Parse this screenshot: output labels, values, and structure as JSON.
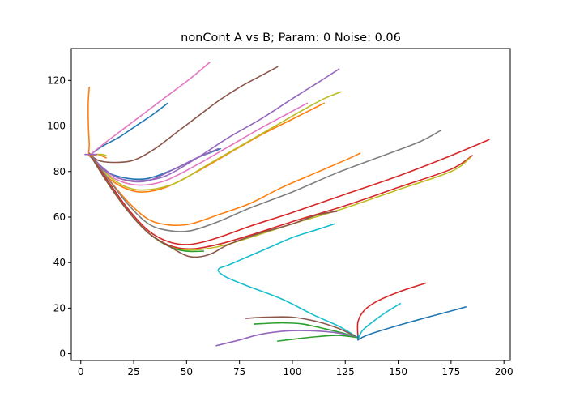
{
  "chart_data": {
    "type": "line",
    "title": "nonCont A vs B; Param: 0 Noise: 0.06",
    "xlabel": "",
    "ylabel": "",
    "xlim": [
      -4.5,
      203
    ],
    "ylim": [
      -3,
      134
    ],
    "xticks": [
      0,
      25,
      50,
      75,
      100,
      125,
      150,
      175,
      200
    ],
    "yticks": [
      0,
      20,
      40,
      60,
      80,
      100,
      120
    ],
    "grid": false,
    "legend": "none",
    "series": [
      {
        "color": "#1f77b4",
        "points": [
          [
            4,
            87
          ],
          [
            10,
            91
          ],
          [
            18,
            95
          ],
          [
            26,
            100
          ],
          [
            34,
            105
          ],
          [
            41,
            110
          ]
        ]
      },
      {
        "color": "#e377c2",
        "points": [
          [
            4,
            87
          ],
          [
            12,
            93
          ],
          [
            22,
            100
          ],
          [
            32,
            107
          ],
          [
            42,
            114
          ],
          [
            52,
            121
          ],
          [
            61,
            128
          ]
        ]
      },
      {
        "color": "#8c564b",
        "points": [
          [
            4,
            88
          ],
          [
            8,
            85
          ],
          [
            15,
            84
          ],
          [
            25,
            85
          ],
          [
            35,
            90
          ],
          [
            45,
            97
          ],
          [
            55,
            104
          ],
          [
            65,
            111
          ],
          [
            75,
            117
          ],
          [
            85,
            122
          ],
          [
            93,
            126
          ]
        ]
      },
      {
        "color": "#9467bd",
        "points": [
          [
            4,
            88
          ],
          [
            10,
            82
          ],
          [
            18,
            77
          ],
          [
            28,
            76
          ],
          [
            40,
            78
          ],
          [
            55,
            86
          ],
          [
            70,
            95
          ],
          [
            85,
            103
          ],
          [
            100,
            112
          ],
          [
            112,
            119
          ],
          [
            122,
            125
          ]
        ]
      },
      {
        "color": "#e377c2",
        "points": [
          [
            4,
            88
          ],
          [
            10,
            81
          ],
          [
            18,
            76
          ],
          [
            28,
            74
          ],
          [
            40,
            76
          ],
          [
            55,
            83
          ],
          [
            70,
            91
          ],
          [
            85,
            99
          ],
          [
            97,
            105
          ],
          [
            107,
            110
          ]
        ]
      },
      {
        "color": "#ff7f0e",
        "points": [
          [
            4,
            88
          ],
          [
            10,
            80
          ],
          [
            18,
            74
          ],
          [
            28,
            71
          ],
          [
            40,
            73
          ],
          [
            55,
            80
          ],
          [
            70,
            88
          ],
          [
            85,
            96
          ],
          [
            100,
            103
          ],
          [
            115,
            110
          ]
        ]
      },
      {
        "color": "#bcbd22",
        "points": [
          [
            4,
            88
          ],
          [
            12,
            79
          ],
          [
            22,
            73
          ],
          [
            32,
            72
          ],
          [
            45,
            75
          ],
          [
            60,
            83
          ],
          [
            75,
            91
          ],
          [
            90,
            99
          ],
          [
            105,
            107
          ],
          [
            115,
            112
          ],
          [
            123,
            115
          ]
        ]
      },
      {
        "color": "#1f77b4",
        "points": [
          [
            4,
            87
          ],
          [
            12,
            80
          ],
          [
            22,
            77
          ],
          [
            32,
            77
          ],
          [
            44,
            81
          ],
          [
            55,
            86
          ],
          [
            66,
            90
          ]
        ]
      },
      {
        "color": "#9467bd",
        "points": [
          [
            4,
            87
          ],
          [
            12,
            80
          ],
          [
            22,
            76
          ],
          [
            32,
            76
          ],
          [
            44,
            81
          ],
          [
            55,
            86
          ],
          [
            65,
            90
          ]
        ]
      },
      {
        "color": "#ff7f0e",
        "points": [
          [
            4,
            88
          ],
          [
            12,
            78
          ],
          [
            22,
            67
          ],
          [
            32,
            59
          ],
          [
            42,
            56.5
          ],
          [
            52,
            57
          ],
          [
            65,
            61
          ],
          [
            80,
            66
          ],
          [
            95,
            73
          ],
          [
            110,
            79
          ],
          [
            125,
            85
          ],
          [
            132,
            88
          ]
        ]
      },
      {
        "color": "#7f7f7f",
        "points": [
          [
            4,
            88
          ],
          [
            12,
            78
          ],
          [
            22,
            66
          ],
          [
            32,
            57
          ],
          [
            42,
            54
          ],
          [
            52,
            54
          ],
          [
            65,
            58
          ],
          [
            80,
            64
          ],
          [
            100,
            71
          ],
          [
            120,
            79
          ],
          [
            140,
            86
          ],
          [
            160,
            93
          ],
          [
            170,
            98
          ]
        ]
      },
      {
        "color": "#d62728",
        "points": [
          [
            4,
            88
          ],
          [
            12,
            77
          ],
          [
            22,
            64
          ],
          [
            32,
            54
          ],
          [
            42,
            49
          ],
          [
            52,
            48
          ],
          [
            65,
            51
          ],
          [
            80,
            56
          ],
          [
            100,
            62
          ],
          [
            125,
            70
          ],
          [
            150,
            78
          ],
          [
            175,
            87
          ],
          [
            193,
            94
          ]
        ]
      },
      {
        "color": "#d62728",
        "points": [
          [
            4,
            88
          ],
          [
            12,
            76
          ],
          [
            22,
            63
          ],
          [
            32,
            53
          ],
          [
            42,
            47.5
          ],
          [
            52,
            46
          ],
          [
            65,
            48
          ],
          [
            80,
            52
          ],
          [
            100,
            58
          ],
          [
            125,
            65
          ],
          [
            150,
            73
          ],
          [
            175,
            81
          ],
          [
            185,
            87
          ]
        ]
      },
      {
        "color": "#bcbd22",
        "points": [
          [
            4,
            88
          ],
          [
            12,
            76
          ],
          [
            22,
            63
          ],
          [
            32,
            53
          ],
          [
            42,
            47
          ],
          [
            52,
            45.5
          ],
          [
            65,
            47
          ],
          [
            80,
            51
          ],
          [
            100,
            57
          ],
          [
            125,
            64
          ],
          [
            150,
            72
          ],
          [
            175,
            80
          ],
          [
            184,
            86
          ]
        ]
      },
      {
        "color": "#2ca02c",
        "points": [
          [
            4,
            88
          ],
          [
            12,
            76
          ],
          [
            22,
            63
          ],
          [
            32,
            53
          ],
          [
            42,
            47
          ],
          [
            50,
            45
          ],
          [
            58,
            45
          ]
        ]
      },
      {
        "color": "#8c564b",
        "points": [
          [
            4,
            88
          ],
          [
            12,
            76
          ],
          [
            22,
            63
          ],
          [
            32,
            53
          ],
          [
            42,
            47
          ],
          [
            50,
            43
          ],
          [
            56,
            42.5
          ],
          [
            62,
            44
          ],
          [
            70,
            48
          ],
          [
            85,
            53
          ],
          [
            100,
            57
          ],
          [
            112,
            61
          ],
          [
            121,
            62.5
          ]
        ]
      },
      {
        "color": "#17becf",
        "points": [
          [
            120,
            57
          ],
          [
            110,
            54
          ],
          [
            100,
            51
          ],
          [
            90,
            47
          ],
          [
            80,
            43
          ],
          [
            70,
            39
          ],
          [
            65,
            37
          ],
          [
            68,
            34
          ],
          [
            78,
            30
          ],
          [
            95,
            24
          ],
          [
            110,
            17
          ],
          [
            122,
            12
          ],
          [
            131,
            7
          ]
        ]
      },
      {
        "color": "#ff7f0e",
        "points": [
          [
            4,
            117
          ],
          [
            3.5,
            110
          ],
          [
            3.6,
            100
          ],
          [
            4,
            92
          ],
          [
            4,
            87
          ],
          [
            8,
            87.5
          ],
          [
            12,
            86
          ]
        ]
      },
      {
        "color": "#9467bd",
        "points": [
          [
            2,
            87.5
          ],
          [
            5,
            87.5
          ],
          [
            8,
            87.5
          ]
        ]
      },
      {
        "color": "#bcbd22",
        "points": [
          [
            8,
            87.5
          ],
          [
            10,
            87.5
          ],
          [
            12,
            87
          ]
        ]
      },
      {
        "color": "#d62728",
        "points": [
          [
            131,
            7
          ],
          [
            131,
            14
          ],
          [
            134,
            19
          ],
          [
            140,
            23
          ],
          [
            150,
            27
          ],
          [
            163,
            31
          ]
        ]
      },
      {
        "color": "#17becf",
        "points": [
          [
            131,
            6
          ],
          [
            133,
            10
          ],
          [
            138,
            14
          ],
          [
            144,
            18
          ],
          [
            151,
            22
          ]
        ]
      },
      {
        "color": "#1f77b4",
        "points": [
          [
            131,
            6
          ],
          [
            135,
            8
          ],
          [
            145,
            11
          ],
          [
            160,
            15
          ],
          [
            172,
            18
          ],
          [
            182,
            20.5
          ]
        ]
      },
      {
        "color": "#8c564b",
        "points": [
          [
            131,
            7
          ],
          [
            122,
            11
          ],
          [
            112,
            14
          ],
          [
            100,
            16
          ],
          [
            88,
            16
          ],
          [
            78,
            15.5
          ]
        ]
      },
      {
        "color": "#2ca02c",
        "points": [
          [
            131,
            7
          ],
          [
            124,
            9
          ],
          [
            115,
            11
          ],
          [
            105,
            13
          ],
          [
            95,
            13.5
          ],
          [
            82,
            13
          ]
        ]
      },
      {
        "color": "#9467bd",
        "points": [
          [
            131,
            7
          ],
          [
            122,
            9
          ],
          [
            110,
            10
          ],
          [
            98,
            10
          ],
          [
            85,
            8.5
          ],
          [
            75,
            6
          ],
          [
            64,
            3.5
          ]
        ]
      },
      {
        "color": "#2ca02c",
        "points": [
          [
            131,
            7
          ],
          [
            122,
            8
          ],
          [
            112,
            7.5
          ],
          [
            102,
            6.5
          ],
          [
            93,
            5.5
          ]
        ]
      },
      {
        "color": "#1f77b4",
        "points": [
          [
            131,
            8
          ],
          [
            131,
            7
          ],
          [
            131,
            6
          ]
        ]
      }
    ]
  }
}
